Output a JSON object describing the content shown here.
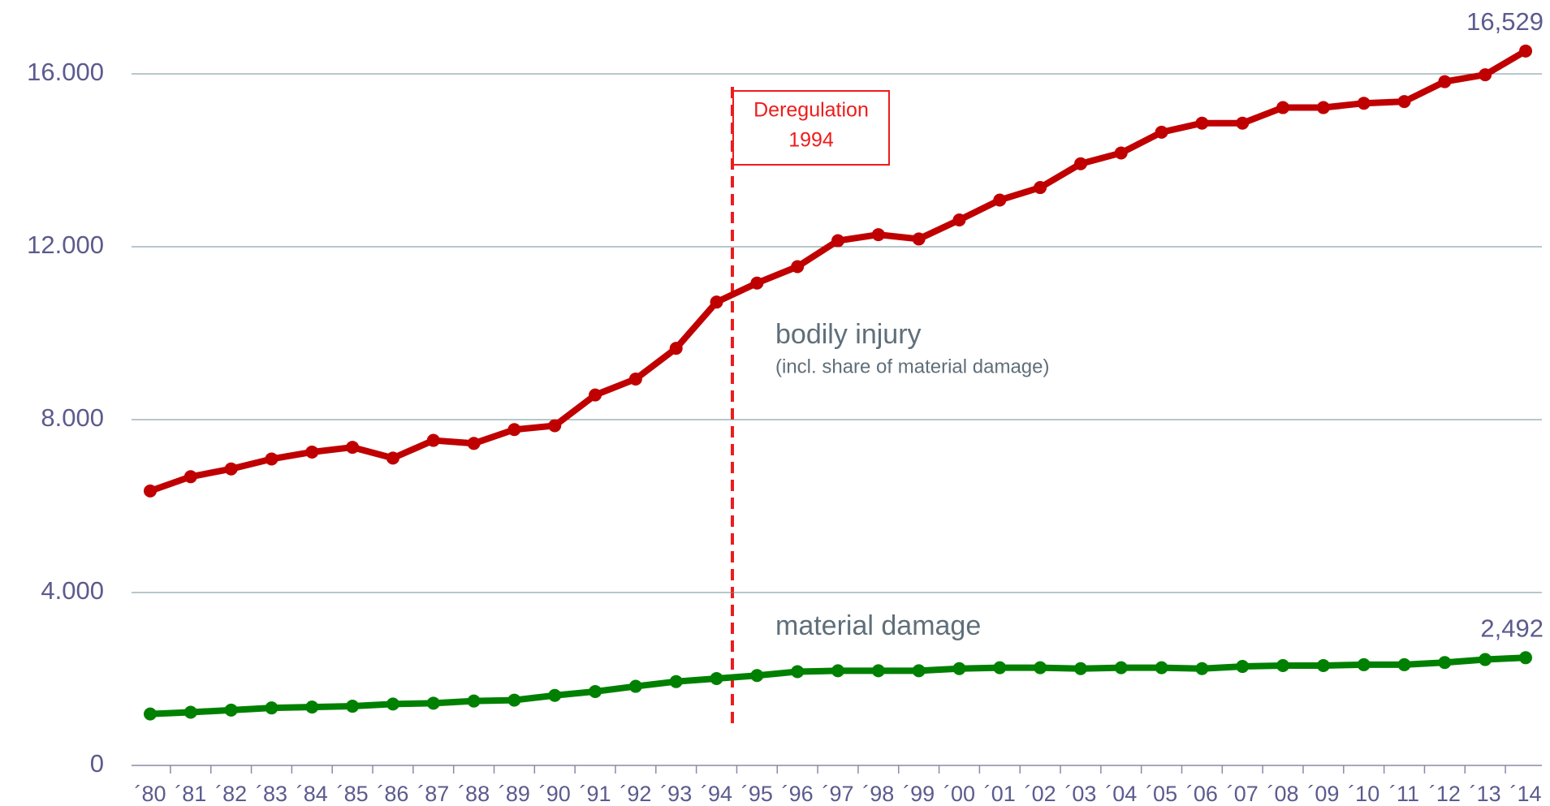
{
  "chart_data": {
    "type": "line",
    "categories": [
      "´80",
      "´81",
      "´82",
      "´83",
      "´84",
      "´85",
      "´86",
      "´87",
      "´88",
      "´89",
      "´90",
      "´91",
      "´92",
      "´93",
      "´94",
      "´95",
      "´96",
      "´97",
      "´98",
      "´99",
      "´00",
      "´01",
      "´02",
      "´03",
      "´04",
      "´05",
      "´06",
      "´07",
      "´08",
      "´09",
      "´10",
      "´11",
      "´12",
      "´13",
      "´14"
    ],
    "series": [
      {
        "name": "bodily injury",
        "subtitle": "(incl. share of material damage)",
        "color": "#c00000",
        "values": [
          6350,
          6680,
          6860,
          7090,
          7250,
          7360,
          7110,
          7520,
          7450,
          7770,
          7860,
          8570,
          8940,
          9650,
          10720,
          11160,
          11540,
          12140,
          12280,
          12180,
          12620,
          13080,
          13370,
          13920,
          14170,
          14650,
          14860,
          14860,
          15220,
          15220,
          15320,
          15360,
          15820,
          15980,
          16529
        ],
        "value_labels": [
          null,
          null,
          null,
          null,
          null,
          null,
          null,
          null,
          null,
          null,
          null,
          null,
          null,
          null,
          null,
          null,
          null,
          null,
          null,
          null,
          null,
          null,
          null,
          null,
          null,
          null,
          null,
          null,
          null,
          null,
          null,
          null,
          null,
          null,
          "16,529"
        ]
      },
      {
        "name": "material damage",
        "color": "#008000",
        "values": [
          1190,
          1230,
          1280,
          1330,
          1350,
          1370,
          1420,
          1440,
          1490,
          1510,
          1620,
          1710,
          1830,
          1940,
          2010,
          2080,
          2170,
          2190,
          2190,
          2190,
          2240,
          2260,
          2260,
          2240,
          2260,
          2260,
          2240,
          2290,
          2310,
          2310,
          2330,
          2330,
          2380,
          2450,
          2492
        ],
        "value_labels": [
          null,
          null,
          null,
          null,
          null,
          null,
          null,
          null,
          null,
          null,
          null,
          null,
          null,
          null,
          null,
          null,
          null,
          null,
          null,
          null,
          null,
          null,
          null,
          null,
          null,
          null,
          null,
          null,
          null,
          null,
          null,
          null,
          null,
          null,
          "2,492"
        ]
      }
    ],
    "annotations": [
      {
        "text": [
          "Deregulation",
          "1994"
        ]
      }
    ],
    "ylim": [
      0,
      16529
    ],
    "yticks": [
      0,
      {
        "value": 4000,
        "label": "4.000"
      },
      {
        "value": 8000,
        "label": "8.000"
      },
      {
        "value": 12000,
        "label": "12.000"
      },
      {
        "value": 16000,
        "label": "16.000"
      }
    ],
    "grid": true
  }
}
